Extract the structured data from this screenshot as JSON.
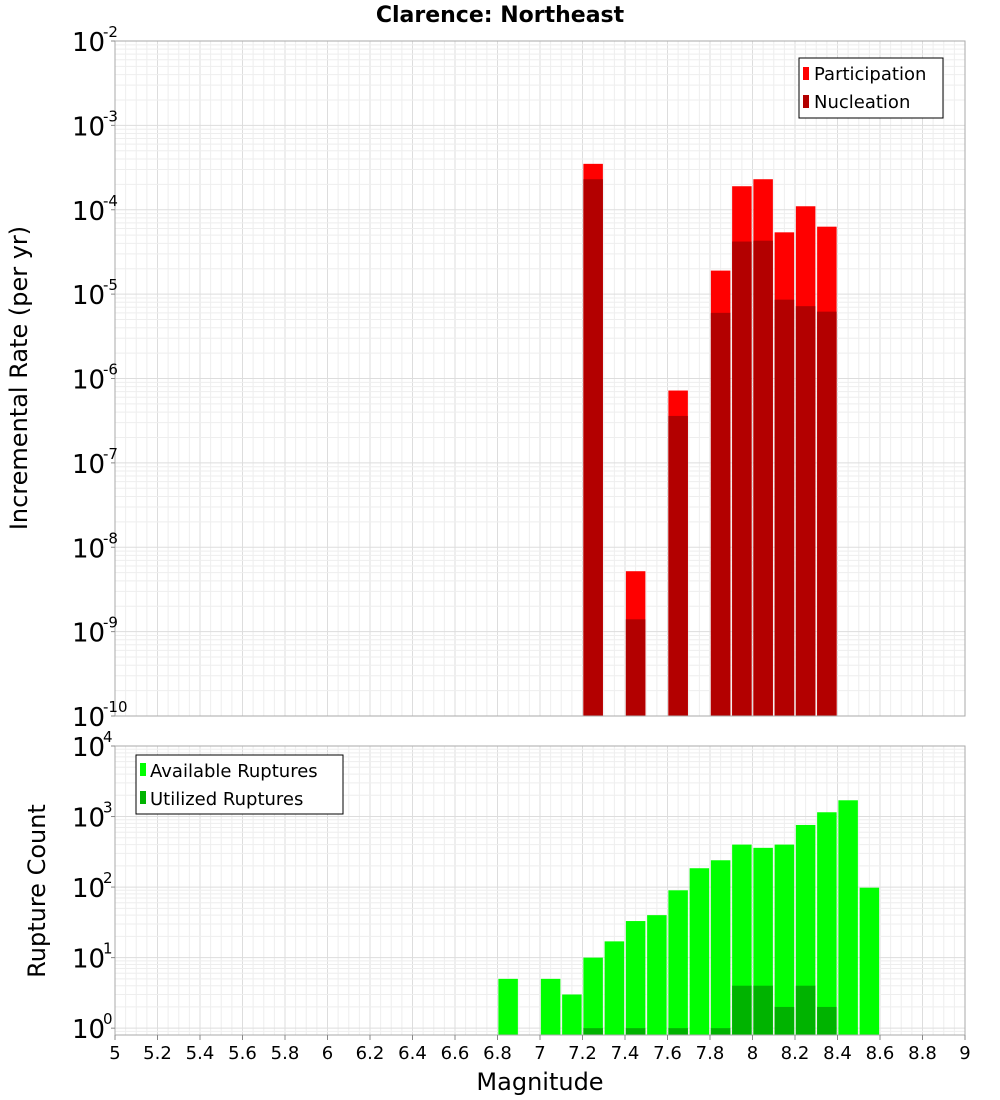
{
  "chart_data": [
    {
      "type": "bar",
      "title": "Clarence: Northeast",
      "ylabel": "Incremental Rate (per yr)",
      "yscale": "log",
      "ylim": [
        1e-10,
        0.01
      ],
      "xlim": [
        5,
        9
      ],
      "grid": true,
      "legend_position": "top-right",
      "x": [
        7.25,
        7.45,
        7.65,
        7.85,
        7.95,
        8.05,
        8.15,
        8.25,
        8.35
      ],
      "series": [
        {
          "name": "Participation",
          "color": "#ff0000",
          "values": [
            0.00035,
            5.2e-09,
            7.2e-07,
            1.9e-05,
            0.00019,
            0.00023,
            5.4e-05,
            0.00011,
            6.3e-05
          ]
        },
        {
          "name": "Nucleation",
          "color": "#b30000",
          "values": [
            0.00023,
            1.4e-09,
            3.6e-07,
            6e-06,
            4.2e-05,
            4.3e-05,
            8.6e-06,
            7.2e-06,
            6.2e-06
          ]
        }
      ],
      "yticks": [
        {
          "base": "10",
          "exp": "-10"
        },
        {
          "base": "10",
          "exp": "-9"
        },
        {
          "base": "10",
          "exp": "-8"
        },
        {
          "base": "10",
          "exp": "-7"
        },
        {
          "base": "10",
          "exp": "-6"
        },
        {
          "base": "10",
          "exp": "-5"
        },
        {
          "base": "10",
          "exp": "-4"
        },
        {
          "base": "10",
          "exp": "-3"
        },
        {
          "base": "10",
          "exp": "-2"
        }
      ]
    },
    {
      "type": "bar",
      "xlabel": "Magnitude",
      "ylabel": "Rupture Count",
      "yscale": "log",
      "ylim": [
        0.8,
        10000
      ],
      "xlim": [
        5,
        9
      ],
      "grid": true,
      "legend_position": "top-left",
      "x": [
        6.85,
        7.05,
        7.15,
        7.25,
        7.35,
        7.45,
        7.55,
        7.65,
        7.75,
        7.85,
        7.95,
        8.05,
        8.15,
        8.25,
        8.35,
        8.45,
        8.55
      ],
      "series": [
        {
          "name": "Available Ruptures",
          "color": "#00ff00",
          "values": [
            5,
            5,
            3,
            10,
            17,
            33,
            40,
            90,
            185,
            240,
            400,
            360,
            400,
            760,
            1150,
            1700,
            98
          ]
        },
        {
          "name": "Utilized Ruptures",
          "color": "#00b300",
          "values": [
            null,
            null,
            null,
            1,
            null,
            1,
            null,
            1,
            null,
            1,
            4,
            4,
            2,
            4,
            2,
            null,
            null
          ]
        }
      ],
      "yticks": [
        {
          "base": "10",
          "exp": "0"
        },
        {
          "base": "10",
          "exp": "1"
        },
        {
          "base": "10",
          "exp": "2"
        },
        {
          "base": "10",
          "exp": "3"
        },
        {
          "base": "10",
          "exp": "4"
        }
      ],
      "xticks": [
        "5",
        "5.2",
        "5.4",
        "5.6",
        "5.8",
        "6",
        "6.2",
        "6.4",
        "6.6",
        "6.8",
        "7",
        "7.2",
        "7.4",
        "7.6",
        "7.8",
        "8",
        "8.2",
        "8.4",
        "8.6",
        "8.8",
        "9"
      ]
    }
  ]
}
